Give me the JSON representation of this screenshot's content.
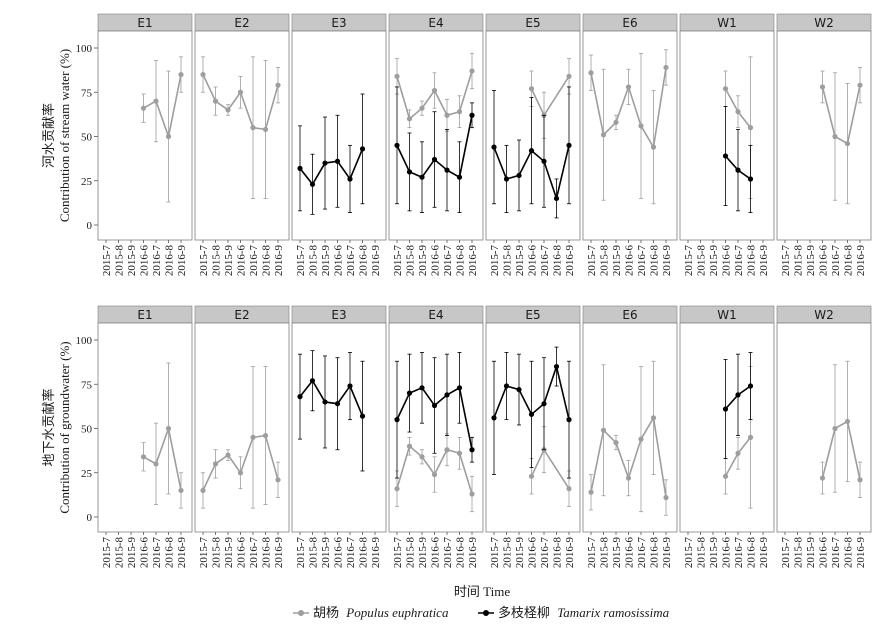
{
  "chart_data": [
    {
      "type": "line",
      "ylabel_cn": "河水贡献率",
      "ylabel_en": "Contribution of stream water (%)",
      "ylim": [
        0,
        100
      ],
      "yticks": [
        0,
        25,
        50,
        75,
        100
      ],
      "panels": [
        "E1",
        "E2",
        "E3",
        "E4",
        "E5",
        "E6",
        "W1",
        "W2"
      ],
      "categories": [
        "2015-7",
        "2015-8",
        "2015-9",
        "2016-6",
        "2016-7",
        "2016-8",
        "2016-9"
      ],
      "series": [
        {
          "name": "胡杨 Populus euphratica",
          "color": "#9e9e9e",
          "panels": {
            "E1": [
              {
                "x": "2016-6",
                "y": 66,
                "lo": 58,
                "hi": 74
              },
              {
                "x": "2016-7",
                "y": 70,
                "lo": 47,
                "hi": 93
              },
              {
                "x": "2016-8",
                "y": 50,
                "lo": 13,
                "hi": 87
              },
              {
                "x": "2016-9",
                "y": 85,
                "lo": 75,
                "hi": 95
              }
            ],
            "E2": [
              {
                "x": "2015-7",
                "y": 85,
                "lo": 75,
                "hi": 95
              },
              {
                "x": "2015-8",
                "y": 70,
                "lo": 62,
                "hi": 78
              },
              {
                "x": "2015-9",
                "y": 65,
                "lo": 62,
                "hi": 68
              },
              {
                "x": "2016-6",
                "y": 75,
                "lo": 66,
                "hi": 84
              },
              {
                "x": "2016-7",
                "y": 55,
                "lo": 15,
                "hi": 95
              },
              {
                "x": "2016-8",
                "y": 54,
                "lo": 15,
                "hi": 93
              },
              {
                "x": "2016-9",
                "y": 79,
                "lo": 69,
                "hi": 89
              }
            ],
            "E4": [
              {
                "x": "2015-7",
                "y": 84,
                "lo": 74,
                "hi": 94
              },
              {
                "x": "2015-8",
                "y": 60,
                "lo": 55,
                "hi": 65
              },
              {
                "x": "2015-9",
                "y": 66,
                "lo": 62,
                "hi": 70
              },
              {
                "x": "2016-6",
                "y": 76,
                "lo": 66,
                "hi": 86
              },
              {
                "x": "2016-7",
                "y": 62,
                "lo": 53,
                "hi": 71
              },
              {
                "x": "2016-8",
                "y": 64,
                "lo": 55,
                "hi": 73
              },
              {
                "x": "2016-9",
                "y": 87,
                "lo": 77,
                "hi": 97
              }
            ],
            "E5": [
              {
                "x": "2016-6",
                "y": 77,
                "lo": 67,
                "hi": 87
              },
              {
                "x": "2016-7",
                "y": 62,
                "lo": 49,
                "hi": 75
              },
              {
                "x": "2016-9",
                "y": 84,
                "lo": 74,
                "hi": 94
              }
            ],
            "E6": [
              {
                "x": "2015-7",
                "y": 86,
                "lo": 76,
                "hi": 96
              },
              {
                "x": "2015-8",
                "y": 51,
                "lo": 14,
                "hi": 88
              },
              {
                "x": "2015-9",
                "y": 58,
                "lo": 54,
                "hi": 62
              },
              {
                "x": "2016-6",
                "y": 78,
                "lo": 68,
                "hi": 88
              },
              {
                "x": "2016-7",
                "y": 56,
                "lo": 15,
                "hi": 97
              },
              {
                "x": "2016-8",
                "y": 44,
                "lo": 12,
                "hi": 76
              },
              {
                "x": "2016-9",
                "y": 89,
                "lo": 79,
                "hi": 99
              }
            ],
            "W1": [
              {
                "x": "2016-6",
                "y": 77,
                "lo": 67,
                "hi": 87
              },
              {
                "x": "2016-7",
                "y": 64,
                "lo": 55,
                "hi": 73
              },
              {
                "x": "2016-8",
                "y": 55,
                "lo": 15,
                "hi": 95
              }
            ],
            "W2": [
              {
                "x": "2016-6",
                "y": 78,
                "lo": 69,
                "hi": 87
              },
              {
                "x": "2016-7",
                "y": 50,
                "lo": 14,
                "hi": 86
              },
              {
                "x": "2016-8",
                "y": 46,
                "lo": 12,
                "hi": 80
              },
              {
                "x": "2016-9",
                "y": 79,
                "lo": 69,
                "hi": 89
              }
            ]
          }
        },
        {
          "name": "多枝柽柳 Tamarix ramosissima",
          "color": "#000000",
          "panels": {
            "E3": [
              {
                "x": "2015-7",
                "y": 32,
                "lo": 8,
                "hi": 56
              },
              {
                "x": "2015-8",
                "y": 23,
                "lo": 6,
                "hi": 40
              },
              {
                "x": "2015-9",
                "y": 35,
                "lo": 9,
                "hi": 61
              },
              {
                "x": "2016-6",
                "y": 36,
                "lo": 10,
                "hi": 62
              },
              {
                "x": "2016-7",
                "y": 26,
                "lo": 7,
                "hi": 45
              },
              {
                "x": "2016-8",
                "y": 43,
                "lo": 12,
                "hi": 74
              }
            ],
            "E4": [
              {
                "x": "2015-7",
                "y": 45,
                "lo": 12,
                "hi": 78
              },
              {
                "x": "2015-8",
                "y": 30,
                "lo": 8,
                "hi": 52
              },
              {
                "x": "2015-9",
                "y": 27,
                "lo": 7,
                "hi": 47
              },
              {
                "x": "2016-6",
                "y": 37,
                "lo": 10,
                "hi": 64
              },
              {
                "x": "2016-7",
                "y": 31,
                "lo": 8,
                "hi": 54
              },
              {
                "x": "2016-8",
                "y": 27,
                "lo": 7,
                "hi": 47
              },
              {
                "x": "2016-9",
                "y": 62,
                "lo": 55,
                "hi": 69
              }
            ],
            "E5": [
              {
                "x": "2015-7",
                "y": 44,
                "lo": 12,
                "hi": 76
              },
              {
                "x": "2015-8",
                "y": 26,
                "lo": 7,
                "hi": 45
              },
              {
                "x": "2015-9",
                "y": 28,
                "lo": 8,
                "hi": 48
              },
              {
                "x": "2016-6",
                "y": 42,
                "lo": 12,
                "hi": 72
              },
              {
                "x": "2016-7",
                "y": 36,
                "lo": 10,
                "hi": 62
              },
              {
                "x": "2016-8",
                "y": 15,
                "lo": 4,
                "hi": 26
              },
              {
                "x": "2016-9",
                "y": 45,
                "lo": 12,
                "hi": 78
              }
            ],
            "W1": [
              {
                "x": "2016-6",
                "y": 39,
                "lo": 11,
                "hi": 67
              },
              {
                "x": "2016-7",
                "y": 31,
                "lo": 8,
                "hi": 54
              },
              {
                "x": "2016-8",
                "y": 26,
                "lo": 7,
                "hi": 45
              }
            ]
          }
        }
      ]
    },
    {
      "type": "line",
      "ylabel_cn": "地下水贡献率",
      "ylabel_en": "Contribution of groundwater (%)",
      "ylim": [
        0,
        100
      ],
      "yticks": [
        0,
        25,
        50,
        75,
        100
      ],
      "panels": [
        "E1",
        "E2",
        "E3",
        "E4",
        "E5",
        "E6",
        "W1",
        "W2"
      ],
      "categories": [
        "2015-7",
        "2015-8",
        "2015-9",
        "2016-6",
        "2016-7",
        "2016-8",
        "2016-9"
      ],
      "series": [
        {
          "name": "胡杨 Populus euphratica",
          "color": "#9e9e9e",
          "panels": {
            "E1": [
              {
                "x": "2016-6",
                "y": 34,
                "lo": 26,
                "hi": 42
              },
              {
                "x": "2016-7",
                "y": 30,
                "lo": 7,
                "hi": 53
              },
              {
                "x": "2016-8",
                "y": 50,
                "lo": 13,
                "hi": 87
              },
              {
                "x": "2016-9",
                "y": 15,
                "lo": 5,
                "hi": 25
              }
            ],
            "E2": [
              {
                "x": "2015-7",
                "y": 15,
                "lo": 5,
                "hi": 25
              },
              {
                "x": "2015-8",
                "y": 30,
                "lo": 22,
                "hi": 38
              },
              {
                "x": "2015-9",
                "y": 35,
                "lo": 32,
                "hi": 38
              },
              {
                "x": "2016-6",
                "y": 25,
                "lo": 16,
                "hi": 34
              },
              {
                "x": "2016-7",
                "y": 45,
                "lo": 5,
                "hi": 85
              },
              {
                "x": "2016-8",
                "y": 46,
                "lo": 7,
                "hi": 85
              },
              {
                "x": "2016-9",
                "y": 21,
                "lo": 11,
                "hi": 31
              }
            ],
            "E4": [
              {
                "x": "2015-7",
                "y": 16,
                "lo": 6,
                "hi": 26
              },
              {
                "x": "2015-8",
                "y": 40,
                "lo": 35,
                "hi": 45
              },
              {
                "x": "2015-9",
                "y": 34,
                "lo": 30,
                "hi": 38
              },
              {
                "x": "2016-6",
                "y": 24,
                "lo": 14,
                "hi": 34
              },
              {
                "x": "2016-7",
                "y": 38,
                "lo": 29,
                "hi": 47
              },
              {
                "x": "2016-8",
                "y": 36,
                "lo": 27,
                "hi": 45
              },
              {
                "x": "2016-9",
                "y": 13,
                "lo": 3,
                "hi": 23
              }
            ],
            "E5": [
              {
                "x": "2016-6",
                "y": 23,
                "lo": 13,
                "hi": 33
              },
              {
                "x": "2016-7",
                "y": 38,
                "lo": 25,
                "hi": 51
              },
              {
                "x": "2016-9",
                "y": 16,
                "lo": 6,
                "hi": 26
              }
            ],
            "E6": [
              {
                "x": "2015-7",
                "y": 14,
                "lo": 4,
                "hi": 24
              },
              {
                "x": "2015-8",
                "y": 49,
                "lo": 12,
                "hi": 86
              },
              {
                "x": "2015-9",
                "y": 42,
                "lo": 38,
                "hi": 46
              },
              {
                "x": "2016-6",
                "y": 22,
                "lo": 12,
                "hi": 32
              },
              {
                "x": "2016-7",
                "y": 44,
                "lo": 3,
                "hi": 85
              },
              {
                "x": "2016-8",
                "y": 56,
                "lo": 24,
                "hi": 88
              },
              {
                "x": "2016-9",
                "y": 11,
                "lo": 1,
                "hi": 21
              }
            ],
            "W1": [
              {
                "x": "2016-6",
                "y": 23,
                "lo": 13,
                "hi": 33
              },
              {
                "x": "2016-7",
                "y": 36,
                "lo": 27,
                "hi": 45
              },
              {
                "x": "2016-8",
                "y": 45,
                "lo": 5,
                "hi": 85
              }
            ],
            "W2": [
              {
                "x": "2016-6",
                "y": 22,
                "lo": 13,
                "hi": 31
              },
              {
                "x": "2016-7",
                "y": 50,
                "lo": 14,
                "hi": 86
              },
              {
                "x": "2016-8",
                "y": 54,
                "lo": 20,
                "hi": 88
              },
              {
                "x": "2016-9",
                "y": 21,
                "lo": 11,
                "hi": 31
              }
            ]
          }
        },
        {
          "name": "多枝柽柳 Tamarix ramosissima",
          "color": "#000000",
          "panels": {
            "E3": [
              {
                "x": "2015-7",
                "y": 68,
                "lo": 44,
                "hi": 92
              },
              {
                "x": "2015-8",
                "y": 77,
                "lo": 60,
                "hi": 94
              },
              {
                "x": "2015-9",
                "y": 65,
                "lo": 39,
                "hi": 91
              },
              {
                "x": "2016-6",
                "y": 64,
                "lo": 38,
                "hi": 90
              },
              {
                "x": "2016-7",
                "y": 74,
                "lo": 55,
                "hi": 93
              },
              {
                "x": "2016-8",
                "y": 57,
                "lo": 26,
                "hi": 88
              }
            ],
            "E4": [
              {
                "x": "2015-7",
                "y": 55,
                "lo": 22,
                "hi": 88
              },
              {
                "x": "2015-8",
                "y": 70,
                "lo": 48,
                "hi": 92
              },
              {
                "x": "2015-9",
                "y": 73,
                "lo": 53,
                "hi": 93
              },
              {
                "x": "2016-6",
                "y": 63,
                "lo": 36,
                "hi": 90
              },
              {
                "x": "2016-7",
                "y": 69,
                "lo": 46,
                "hi": 92
              },
              {
                "x": "2016-8",
                "y": 73,
                "lo": 53,
                "hi": 93
              },
              {
                "x": "2016-9",
                "y": 38,
                "lo": 31,
                "hi": 45
              }
            ],
            "E5": [
              {
                "x": "2015-7",
                "y": 56,
                "lo": 24,
                "hi": 88
              },
              {
                "x": "2015-8",
                "y": 74,
                "lo": 55,
                "hi": 93
              },
              {
                "x": "2015-9",
                "y": 72,
                "lo": 52,
                "hi": 92
              },
              {
                "x": "2016-6",
                "y": 58,
                "lo": 28,
                "hi": 88
              },
              {
                "x": "2016-7",
                "y": 64,
                "lo": 38,
                "hi": 90
              },
              {
                "x": "2016-8",
                "y": 85,
                "lo": 74,
                "hi": 96
              },
              {
                "x": "2016-9",
                "y": 55,
                "lo": 22,
                "hi": 88
              }
            ],
            "W1": [
              {
                "x": "2016-6",
                "y": 61,
                "lo": 33,
                "hi": 89
              },
              {
                "x": "2016-7",
                "y": 69,
                "lo": 46,
                "hi": 92
              },
              {
                "x": "2016-8",
                "y": 74,
                "lo": 55,
                "hi": 93
              }
            ]
          }
        }
      ]
    }
  ],
  "xlabel": "时间 Time",
  "legend": [
    {
      "cn": "胡杨",
      "species": "Populus euphratica",
      "color": "#9e9e9e"
    },
    {
      "cn": "多枝柽柳",
      "species": "Tamarix ramosissima",
      "color": "#000000"
    }
  ]
}
